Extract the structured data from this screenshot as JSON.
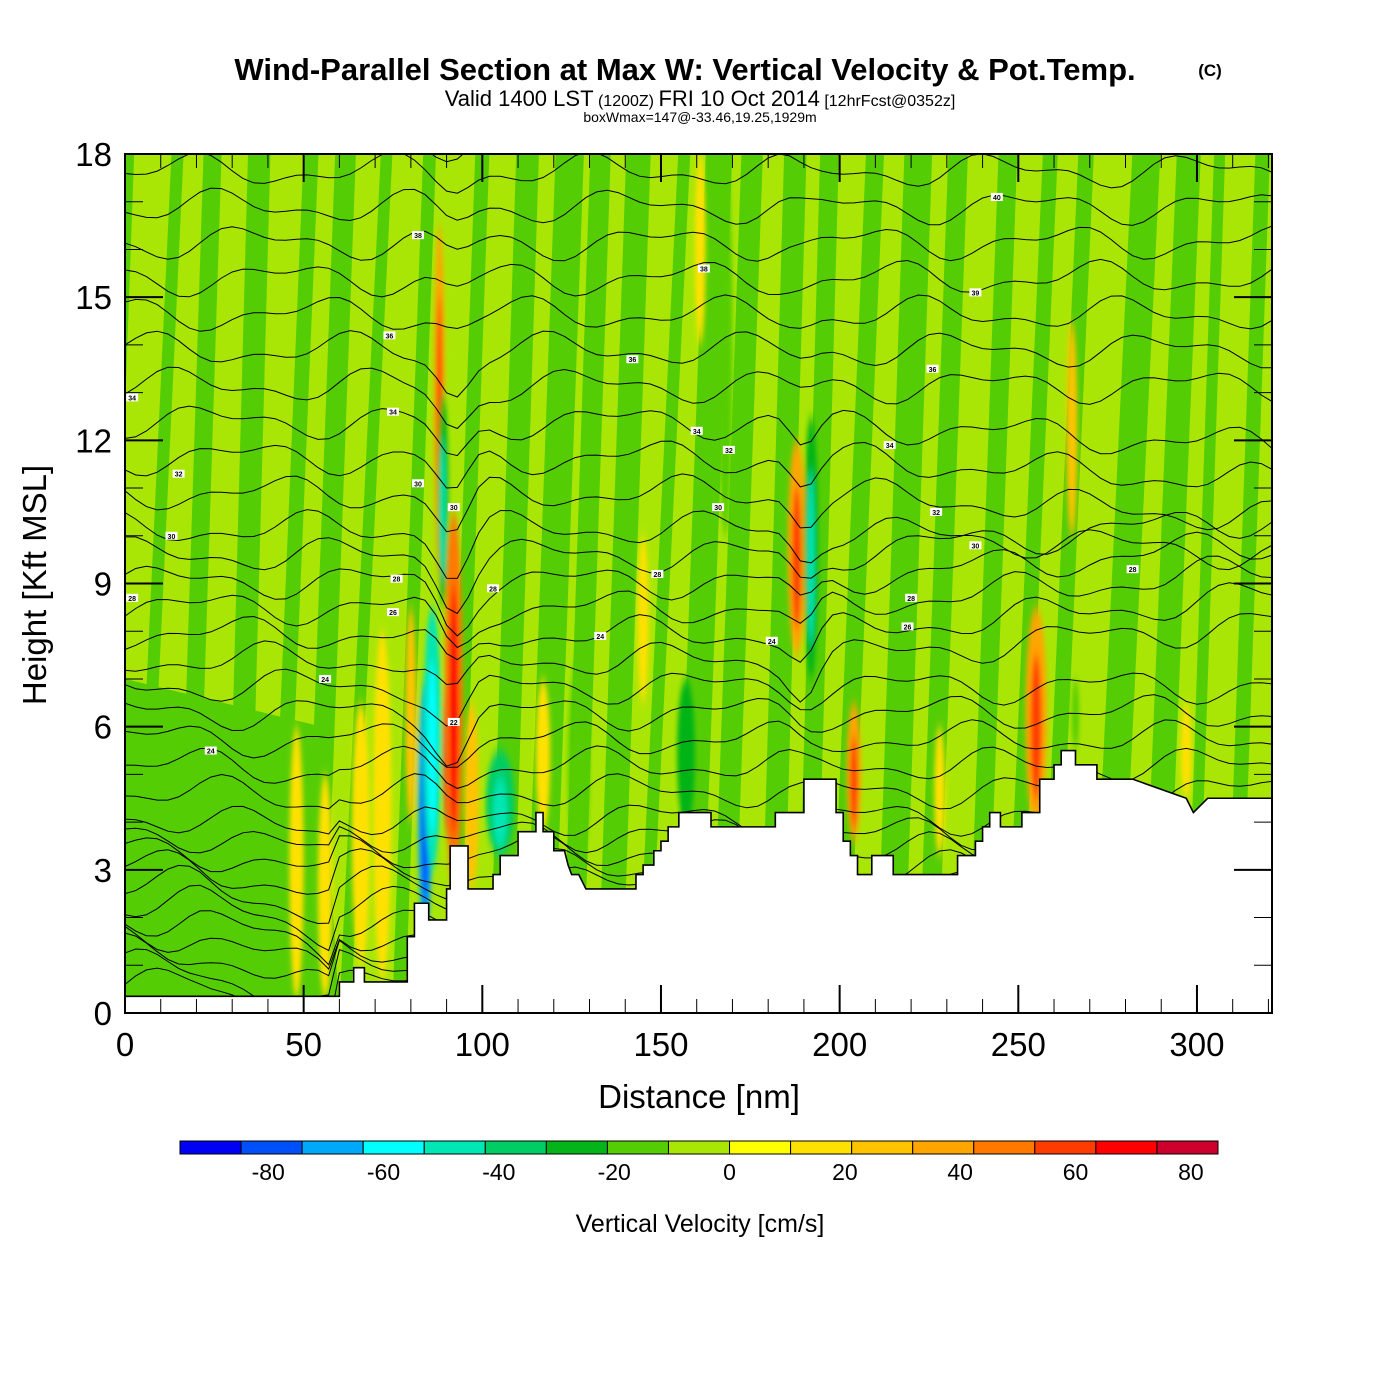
{
  "chart_data": {
    "type": "heatmap",
    "title": "Wind-Parallel Section at Max W: Vertical Velocity & Pot.Temp.",
    "title_mark": "(C)",
    "subtitle": {
      "prefix": "Valid 1400 LST",
      "utc": "(1200Z)",
      "date": "FRI 10 Oct 2014",
      "forecast": "[12hrFcst@0352z]"
    },
    "subtitle2": "boxWmax=147@-33.46,19.25,1929m",
    "xlabel": "Distance [nm]",
    "ylabel": "Height [Kft MSL]",
    "xlim": [
      0,
      321
    ],
    "ylim": [
      0,
      18
    ],
    "xticks": [
      0,
      50,
      100,
      150,
      200,
      250,
      300
    ],
    "yticks": [
      0,
      3,
      6,
      9,
      12,
      15,
      18
    ],
    "xminor_step": 10,
    "yminor_step": 1,
    "colorbar": {
      "title": "Vertical Velocity [cm/s]",
      "levels": [
        -90,
        -80,
        -70,
        -60,
        -50,
        -40,
        -30,
        -20,
        -10,
        0,
        10,
        20,
        30,
        40,
        50,
        60,
        70,
        80,
        90
      ],
      "tick_labels": [
        -80,
        -60,
        -40,
        -20,
        0,
        20,
        40,
        60,
        80
      ],
      "colors": [
        "#0000f5",
        "#0050fa",
        "#00a8fa",
        "#00ffff",
        "#00e6b4",
        "#00cd64",
        "#05b419",
        "#55cd05",
        "#aae605",
        "#ffff00",
        "#ffe100",
        "#ffc300",
        "#ffa500",
        "#ff7800",
        "#ff3c00",
        "#ff0000",
        "#cd002d"
      ],
      "placement": "bottom"
    },
    "terrain_kft": {
      "x": [
        0,
        60,
        60,
        64,
        64,
        67,
        67,
        71,
        71,
        79,
        79,
        81,
        81,
        82,
        82,
        85,
        85,
        86,
        86,
        90,
        90,
        91,
        91,
        93,
        93,
        96,
        96,
        99,
        99,
        101,
        101,
        103,
        103,
        105,
        105,
        110,
        110,
        115,
        115,
        117,
        117,
        120,
        120,
        123,
        123,
        124,
        124,
        125,
        125,
        127,
        127,
        129,
        129,
        130,
        130,
        134,
        134,
        143,
        143,
        145,
        145,
        148,
        148,
        150,
        150,
        152,
        152,
        155,
        155,
        164,
        164,
        170,
        170,
        182,
        182,
        190,
        190,
        199,
        199,
        201,
        201,
        203,
        203,
        205,
        205,
        209,
        209,
        215,
        215,
        233,
        233,
        238,
        238,
        240,
        240,
        242,
        242,
        245,
        245,
        251,
        251,
        256,
        256,
        260,
        260,
        262,
        262,
        264,
        264,
        266,
        266,
        272,
        272,
        282,
        282,
        297,
        297,
        299,
        299,
        303,
        303,
        321
      ],
      "y": [
        0.35,
        0.35,
        0.65,
        0.65,
        0.95,
        0.95,
        0.65,
        0.65,
        0.65,
        0.65,
        1.6,
        1.6,
        2.3,
        2.3,
        2.3,
        2.3,
        1.95,
        1.95,
        1.95,
        1.95,
        2.6,
        2.6,
        3.5,
        3.5,
        3.5,
        3.5,
        2.6,
        2.6,
        2.6,
        2.6,
        2.6,
        2.6,
        2.9,
        2.9,
        3.3,
        3.3,
        3.8,
        3.8,
        4.2,
        4.2,
        3.8,
        3.8,
        3.4,
        3.4,
        3.4,
        3.1,
        3.1,
        2.9,
        2.9,
        2.9,
        2.9,
        2.6,
        2.6,
        2.6,
        2.6,
        2.6,
        2.6,
        2.6,
        2.9,
        2.9,
        3.1,
        3.1,
        3.4,
        3.4,
        3.6,
        3.6,
        3.9,
        3.9,
        4.2,
        4.2,
        3.9,
        3.9,
        3.9,
        3.9,
        4.2,
        4.2,
        4.9,
        4.9,
        4.2,
        4.2,
        3.6,
        3.6,
        3.3,
        3.3,
        2.9,
        2.9,
        3.3,
        3.3,
        2.9,
        2.9,
        3.3,
        3.3,
        3.6,
        3.6,
        3.9,
        3.9,
        4.2,
        4.2,
        3.9,
        3.9,
        4.2,
        4.2,
        4.9,
        4.9,
        5.2,
        5.2,
        5.5,
        5.5,
        5.5,
        5.5,
        5.2,
        5.2,
        4.9,
        4.9,
        4.9,
        4.5,
        4.5,
        4.2,
        4.2,
        4.5,
        4.5,
        4.5
      ]
    },
    "w_bands_cm_s": {
      "description": "Approximate vertical-velocity structures (filled contours), x in nm, heights in kft",
      "features": [
        {
          "x": 48,
          "width": 4,
          "y0": 0.3,
          "y1": 6.0,
          "value": 15
        },
        {
          "x": 56,
          "width": 4,
          "y0": 0.3,
          "y1": 5.0,
          "value": 15
        },
        {
          "x": 66,
          "width": 5,
          "y0": 1.0,
          "y1": 6.5,
          "value": 12
        },
        {
          "x": 72,
          "width": 5,
          "y0": 0.7,
          "y1": 8.0,
          "value": 15
        },
        {
          "x": 80,
          "width": 3,
          "y0": 4.0,
          "y1": 8.5,
          "value": 25
        },
        {
          "x": 84,
          "width": 4,
          "y0": 1.6,
          "y1": 7.0,
          "value": -65
        },
        {
          "x": 86,
          "width": 5,
          "y0": 3.0,
          "y1": 8.5,
          "value": -45
        },
        {
          "x": 91,
          "width": 4,
          "y0": 3.5,
          "y1": 7.5,
          "value": 80
        },
        {
          "x": 92,
          "width": 5,
          "y0": 2.6,
          "y1": 10.5,
          "value": 45
        },
        {
          "x": 88,
          "width": 3,
          "y0": 9.0,
          "y1": 16.5,
          "value": 30
        },
        {
          "x": 89,
          "width": 3,
          "y0": 8.5,
          "y1": 13.0,
          "value": -30
        },
        {
          "x": 97,
          "width": 4,
          "y0": 2.6,
          "y1": 6.5,
          "value": 25
        },
        {
          "x": 105,
          "width": 8,
          "y0": 3.3,
          "y1": 5.5,
          "value": -35
        },
        {
          "x": 117,
          "width": 4,
          "y0": 3.8,
          "y1": 7.0,
          "value": 12
        },
        {
          "x": 127,
          "width": 6,
          "y0": 2.9,
          "y1": 7.5,
          "value": -15
        },
        {
          "x": 145,
          "width": 3,
          "y0": 6.5,
          "y1": 10.0,
          "value": 15
        },
        {
          "x": 157,
          "width": 5,
          "y0": 3.9,
          "y1": 7.0,
          "value": -25
        },
        {
          "x": 161,
          "width": 3,
          "y0": 14.0,
          "y1": 18.0,
          "value": 15
        },
        {
          "x": 168,
          "width": 4,
          "y0": 10.0,
          "y1": 18.0,
          "value": -20
        },
        {
          "x": 188,
          "width": 5,
          "y0": 7.5,
          "y1": 12.0,
          "value": 35
        },
        {
          "x": 192,
          "width": 4,
          "y0": 7.0,
          "y1": 12.5,
          "value": -30
        },
        {
          "x": 204,
          "width": 4,
          "y0": 3.6,
          "y1": 6.5,
          "value": 30
        },
        {
          "x": 228,
          "width": 3,
          "y0": 3.3,
          "y1": 6.0,
          "value": 15
        },
        {
          "x": 255,
          "width": 6,
          "y0": 3.9,
          "y1": 8.5,
          "value": 30
        },
        {
          "x": 265,
          "width": 3,
          "y0": 10.0,
          "y1": 14.5,
          "value": 25
        },
        {
          "x": 266,
          "width": 2,
          "y0": 5.5,
          "y1": 7.0,
          "value": -20
        },
        {
          "x": 297,
          "width": 3,
          "y0": 4.5,
          "y1": 6.5,
          "value": 15
        }
      ]
    },
    "theta_contours": {
      "description": "Potential temperature isentropes (black lines); label values shown on plot",
      "visible_labels": [
        {
          "x": 2,
          "y": 12.9,
          "text": "34"
        },
        {
          "x": 15,
          "y": 11.3,
          "text": "32"
        },
        {
          "x": 13,
          "y": 10.0,
          "text": "30"
        },
        {
          "x": 2,
          "y": 8.7,
          "text": "28"
        },
        {
          "x": 24,
          "y": 5.5,
          "text": "24"
        },
        {
          "x": 56,
          "y": 7.0,
          "text": "24"
        },
        {
          "x": 74,
          "y": 14.2,
          "text": "36"
        },
        {
          "x": 75,
          "y": 12.6,
          "text": "34"
        },
        {
          "x": 75,
          "y": 8.4,
          "text": "26"
        },
        {
          "x": 76,
          "y": 9.1,
          "text": "28"
        },
        {
          "x": 82,
          "y": 16.3,
          "text": "38"
        },
        {
          "x": 82,
          "y": 11.1,
          "text": "30"
        },
        {
          "x": 92,
          "y": 10.6,
          "text": "30"
        },
        {
          "x": 103,
          "y": 8.9,
          "text": "28"
        },
        {
          "x": 92,
          "y": 6.1,
          "text": "22"
        },
        {
          "x": 142,
          "y": 13.7,
          "text": "36"
        },
        {
          "x": 133,
          "y": 7.9,
          "text": "24"
        },
        {
          "x": 149,
          "y": 9.2,
          "text": "28"
        },
        {
          "x": 160,
          "y": 12.2,
          "text": "34"
        },
        {
          "x": 162,
          "y": 15.6,
          "text": "38"
        },
        {
          "x": 166,
          "y": 10.6,
          "text": "30"
        },
        {
          "x": 169,
          "y": 11.8,
          "text": "32"
        },
        {
          "x": 181,
          "y": 7.8,
          "text": "24"
        },
        {
          "x": 214,
          "y": 11.9,
          "text": "34"
        },
        {
          "x": 226,
          "y": 13.5,
          "text": "36"
        },
        {
          "x": 227,
          "y": 10.5,
          "text": "32"
        },
        {
          "x": 220,
          "y": 8.7,
          "text": "28"
        },
        {
          "x": 219,
          "y": 8.1,
          "text": "26"
        },
        {
          "x": 238,
          "y": 9.8,
          "text": "30"
        },
        {
          "x": 238,
          "y": 15.1,
          "text": "39"
        },
        {
          "x": 244,
          "y": 17.1,
          "text": "40"
        },
        {
          "x": 282,
          "y": 9.3,
          "text": "28"
        }
      ]
    }
  }
}
